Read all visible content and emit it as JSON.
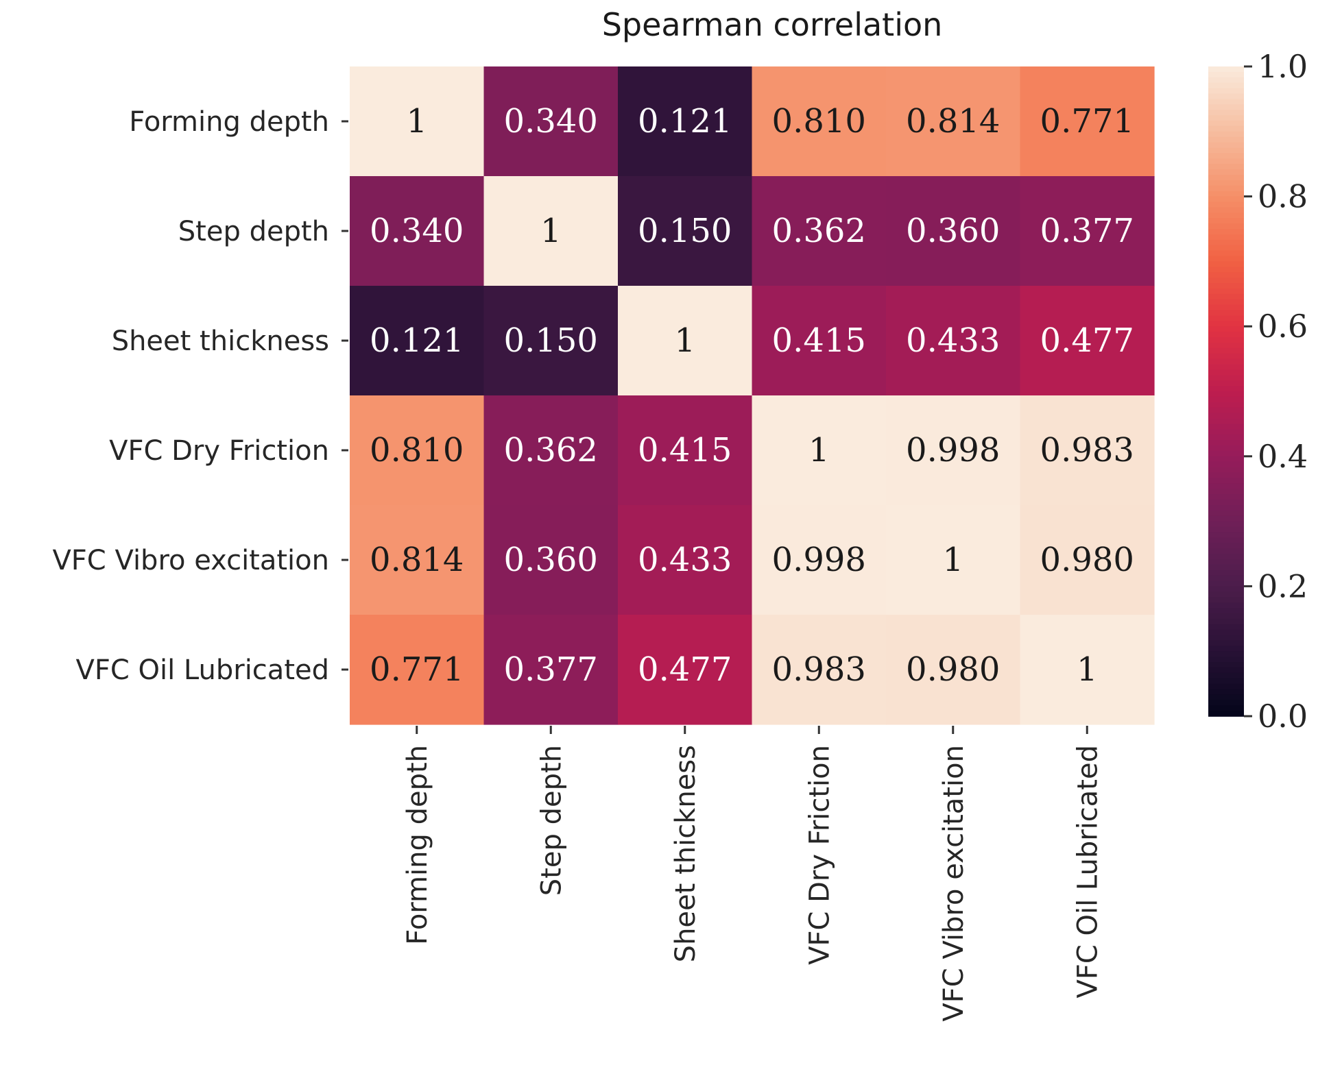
{
  "chart_data": {
    "type": "heatmap",
    "title": "Spearman correlation",
    "rows": [
      "Forming depth",
      "Step depth",
      "Sheet thickness",
      "VFC Dry Friction",
      "VFC Vibro excitation",
      "VFC Oil Lubricated"
    ],
    "columns": [
      "Forming depth",
      "Step depth",
      "Sheet thickness",
      "VFC Dry Friction",
      "VFC Vibro excitation",
      "VFC Oil Lubricated"
    ],
    "values": [
      [
        1,
        0.34,
        0.121,
        0.81,
        0.814,
        0.771
      ],
      [
        0.34,
        1,
        0.15,
        0.362,
        0.36,
        0.377
      ],
      [
        0.121,
        0.15,
        1,
        0.415,
        0.433,
        0.477
      ],
      [
        0.81,
        0.362,
        0.415,
        1,
        0.998,
        0.983
      ],
      [
        0.814,
        0.36,
        0.433,
        0.998,
        1,
        0.98
      ],
      [
        0.771,
        0.377,
        0.477,
        0.983,
        0.98,
        1
      ]
    ],
    "annotations": [
      [
        "1",
        "0.340",
        "0.121",
        "0.810",
        "0.814",
        "0.771"
      ],
      [
        "0.340",
        "1",
        "0.150",
        "0.362",
        "0.360",
        "0.377"
      ],
      [
        "0.121",
        "0.150",
        "1",
        "0.415",
        "0.433",
        "0.477"
      ],
      [
        "0.810",
        "0.362",
        "0.415",
        "1",
        "0.998",
        "0.983"
      ],
      [
        "0.814",
        "0.360",
        "0.433",
        "0.998",
        "1",
        "0.980"
      ],
      [
        "0.771",
        "0.377",
        "0.477",
        "0.983",
        "0.980",
        "1"
      ]
    ],
    "colorbar": {
      "range": [
        0.0,
        1.0
      ],
      "ticks": [
        "0.0",
        "0.2",
        "0.4",
        "0.6",
        "0.8",
        "1.0"
      ],
      "colormap": "rocket",
      "position": "right"
    }
  }
}
